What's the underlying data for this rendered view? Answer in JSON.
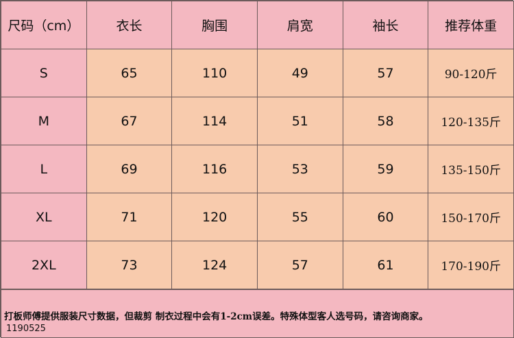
{
  "headers": [
    "尺码（cm）",
    "衣长",
    "胸围",
    "肩宽",
    "袖长",
    "推荐体重"
  ],
  "rows": [
    [
      "S",
      "65",
      "110",
      "49",
      "57",
      "90-120斤"
    ],
    [
      "M",
      "67",
      "114",
      "51",
      "58",
      "120-135斤"
    ],
    [
      "L",
      "69",
      "116",
      "53",
      "59",
      "135-150斤"
    ],
    [
      "XL",
      "71",
      "120",
      "55",
      "60",
      "150-170斤"
    ],
    [
      "2XL",
      "73",
      "124",
      "57",
      "61",
      "170-190斤"
    ]
  ],
  "footer": {
    "note": "打板师傅提供服装尺寸数据，但裁剪 制衣过程中会有1-2cm误差。特殊体型客人选号码，请咨询商家。",
    "code": "1190525"
  },
  "colors": {
    "header": "#F4B8C1",
    "body": "#F8CBAD"
  }
}
